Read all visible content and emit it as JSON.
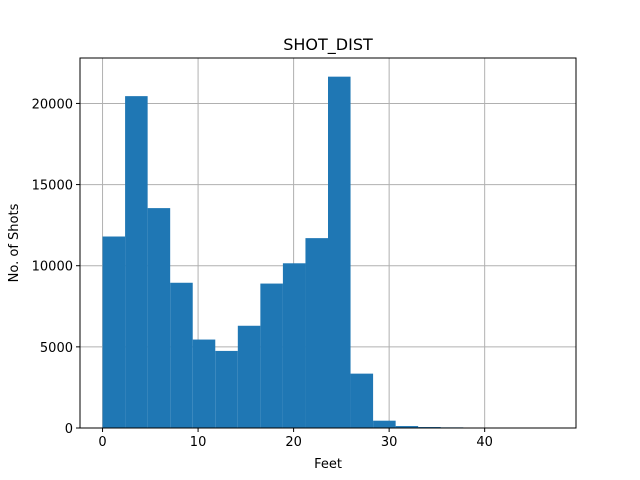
{
  "chart_data": {
    "type": "bar",
    "title": "SHOT_DIST",
    "xlabel": "Feet",
    "ylabel": "No. of Shots",
    "xlim": [
      -2.36,
      49.56
    ],
    "ylim": [
      0,
      22800
    ],
    "grid": true,
    "bar_color": "#1f77b4",
    "x_ticks": [
      0,
      10,
      20,
      30,
      40
    ],
    "y_ticks": [
      0,
      5000,
      10000,
      15000,
      20000
    ],
    "bins": [
      {
        "start": 0.0,
        "end": 2.36,
        "value": 11800
      },
      {
        "start": 2.36,
        "end": 4.72,
        "value": 20450
      },
      {
        "start": 4.72,
        "end": 7.08,
        "value": 13550
      },
      {
        "start": 7.08,
        "end": 9.44,
        "value": 8950
      },
      {
        "start": 9.44,
        "end": 11.8,
        "value": 5450
      },
      {
        "start": 11.8,
        "end": 14.16,
        "value": 4750
      },
      {
        "start": 14.16,
        "end": 16.52,
        "value": 6300
      },
      {
        "start": 16.52,
        "end": 18.88,
        "value": 8900
      },
      {
        "start": 18.88,
        "end": 21.24,
        "value": 10150
      },
      {
        "start": 21.24,
        "end": 23.6,
        "value": 11700
      },
      {
        "start": 23.6,
        "end": 25.96,
        "value": 21650
      },
      {
        "start": 25.96,
        "end": 28.32,
        "value": 3350
      },
      {
        "start": 28.32,
        "end": 30.68,
        "value": 450
      },
      {
        "start": 30.68,
        "end": 33.04,
        "value": 120
      },
      {
        "start": 33.04,
        "end": 35.4,
        "value": 60
      },
      {
        "start": 35.4,
        "end": 37.76,
        "value": 40
      },
      {
        "start": 37.76,
        "end": 40.12,
        "value": 30
      },
      {
        "start": 40.12,
        "end": 42.48,
        "value": 20
      },
      {
        "start": 42.48,
        "end": 44.84,
        "value": 10
      },
      {
        "start": 44.84,
        "end": 47.2,
        "value": 5
      }
    ]
  }
}
